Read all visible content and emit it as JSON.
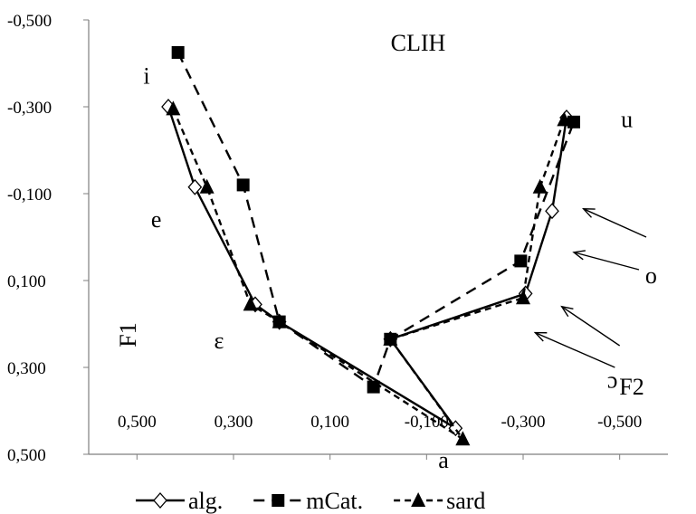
{
  "chart_data": {
    "type": "line",
    "title": "CLIH",
    "xlabel": "F2",
    "ylabel": "F1",
    "xlim": [
      0.6,
      -0.6
    ],
    "ylim": [
      -0.5,
      0.5
    ],
    "x_ticks": [
      "0,500",
      "0,300",
      "0,100",
      "-0,100",
      "-0,300",
      "-0,500"
    ],
    "x_tick_values": [
      0.5,
      0.3,
      0.1,
      -0.1,
      -0.3,
      -0.5
    ],
    "y_ticks": [
      "-0,500",
      "-0,300",
      "-0,100",
      "0,100",
      "0,300",
      "0,500"
    ],
    "y_tick_values": [
      -0.5,
      -0.3,
      -0.1,
      0.1,
      0.3,
      0.5
    ],
    "grid": false,
    "legend_position": "bottom",
    "series": [
      {
        "name": "alg.",
        "marker": "open-diamond",
        "line": "solid",
        "color": "#000000",
        "points": [
          [
            0.435,
            -0.3
          ],
          [
            0.38,
            -0.115
          ],
          [
            0.255,
            0.155
          ],
          [
            0.205,
            0.195
          ],
          [
            -0.16,
            0.44
          ],
          [
            -0.025,
            0.235
          ],
          [
            -0.305,
            0.13
          ],
          [
            -0.36,
            -0.06
          ],
          [
            -0.39,
            -0.275
          ]
        ]
      },
      {
        "name": "mCat.",
        "marker": "filled-square",
        "line": "dash",
        "color": "#000000",
        "points": [
          [
            0.415,
            -0.425
          ],
          [
            0.28,
            -0.12
          ],
          [
            0.205,
            0.195
          ],
          [
            0.01,
            0.345
          ],
          [
            -0.025,
            0.235
          ],
          [
            -0.295,
            0.055
          ],
          [
            -0.405,
            -0.265
          ]
        ]
      },
      {
        "name": "sard",
        "marker": "filled-triangle",
        "line": "short-dash",
        "color": "#000000",
        "points": [
          [
            0.425,
            -0.295
          ],
          [
            0.355,
            -0.115
          ],
          [
            0.265,
            0.155
          ],
          [
            0.205,
            0.195
          ],
          [
            -0.175,
            0.465
          ],
          [
            -0.025,
            0.235
          ],
          [
            -0.3,
            0.14
          ],
          [
            -0.335,
            -0.115
          ],
          [
            -0.385,
            -0.27
          ]
        ]
      }
    ],
    "annotations": [
      {
        "text": "i",
        "x": 0.48,
        "y": -0.37
      },
      {
        "text": "e",
        "x": 0.46,
        "y": -0.04
      },
      {
        "text": "ɛ",
        "x": 0.33,
        "y": 0.24
      },
      {
        "text": "a",
        "x": -0.135,
        "y": 0.515
      },
      {
        "text": "u",
        "x": -0.515,
        "y": -0.27
      },
      {
        "text": "o",
        "x": -0.565,
        "y": 0.09
      },
      {
        "text": "ɔ",
        "x": -0.485,
        "y": 0.33
      }
    ],
    "arrows": [
      {
        "from": [
          -0.555,
          0.0
        ],
        "to": [
          -0.425,
          -0.065
        ]
      },
      {
        "from": [
          -0.54,
          0.075
        ],
        "to": [
          -0.405,
          0.035
        ]
      },
      {
        "from": [
          -0.5,
          0.25
        ],
        "to": [
          -0.38,
          0.16
        ]
      },
      {
        "from": [
          -0.49,
          0.3
        ],
        "to": [
          -0.325,
          0.22
        ]
      }
    ]
  },
  "legend": [
    {
      "label": "alg.",
      "marker": "open-diamond",
      "line": "solid"
    },
    {
      "label": "mCat.",
      "marker": "filled-square",
      "line": "dash"
    },
    {
      "label": "sard",
      "marker": "filled-triangle",
      "line": "short-dash"
    }
  ]
}
